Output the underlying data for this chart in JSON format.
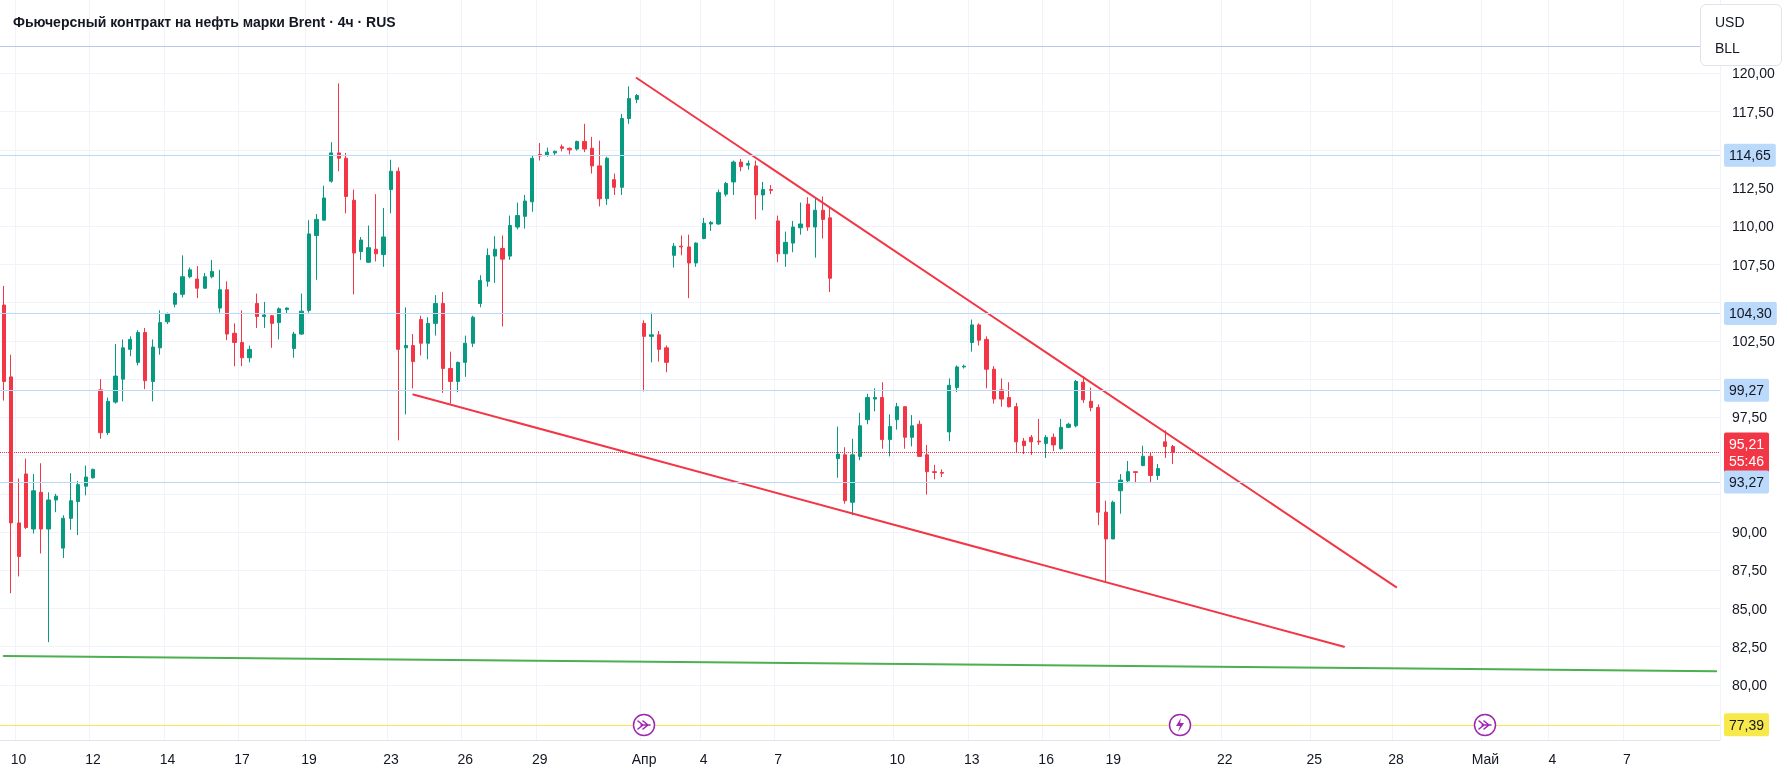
{
  "chart_data": {
    "type": "candlestick",
    "title": "Фьючерсный контракт на нефть марки Brent · 4ч · RUS",
    "annotations": [
      "USD",
      "BLL"
    ],
    "categories": [
      null,
      null,
      "10",
      null,
      null,
      null,
      null,
      null,
      null,
      null,
      null,
      null,
      "12",
      null,
      null,
      null,
      null,
      null,
      null,
      null,
      null,
      null,
      "14",
      null,
      null,
      null,
      null,
      null,
      null,
      null,
      null,
      null,
      "17",
      null,
      null,
      null,
      null,
      null,
      null,
      null,
      null,
      "19",
      null,
      null,
      null,
      null,
      null,
      null,
      null,
      null,
      null,
      null,
      "23",
      null,
      null,
      null,
      null,
      null,
      null,
      null,
      null,
      null,
      "26",
      null,
      null,
      null,
      null,
      null,
      null,
      null,
      null,
      null,
      "29",
      null,
      null,
      null,
      null,
      null,
      null,
      null,
      null,
      null,
      null,
      null,
      null,
      null,
      "Апр",
      null,
      null,
      null,
      null,
      null,
      null,
      null,
      "4",
      null,
      null,
      null,
      null,
      null,
      null,
      null,
      null,
      null,
      "7",
      null,
      null,
      null,
      null,
      null,
      null,
      null,
      null,
      null,
      null,
      null,
      null,
      null,
      null,
      null,
      "10",
      null,
      null,
      null,
      null,
      null,
      null,
      null,
      null,
      null,
      "13",
      null,
      null,
      null,
      null,
      null,
      null,
      null,
      null,
      null,
      "16",
      null,
      null,
      null,
      null,
      null,
      null,
      null,
      null,
      "19",
      null,
      null,
      null,
      null,
      null,
      null,
      null,
      null,
      null,
      null,
      null,
      null,
      null,
      null,
      "22",
      null,
      null,
      null,
      null,
      null,
      null,
      null,
      null,
      null,
      null,
      null,
      "25",
      null,
      null,
      null,
      null,
      null,
      null,
      null,
      null,
      null,
      null,
      "28",
      null,
      null,
      null,
      null,
      null,
      null,
      null,
      null,
      null,
      null,
      null,
      "Май",
      null,
      null,
      null,
      null,
      null,
      null,
      null,
      null,
      "4",
      null,
      null,
      null,
      null,
      null,
      null,
      null,
      null,
      null,
      "7",
      null,
      null,
      null,
      null,
      null,
      null,
      null,
      null,
      null,
      null,
      null,
      null
    ],
    "series": [
      {
        "ohlc": [
          [
            104.85,
            106.1,
            98.6,
            99.85
          ],
          [
            100.15,
            101.6,
            86.0,
            90.6
          ],
          [
            90.6,
            93.5,
            87.1,
            88.4
          ],
          [
            93.8,
            94.8,
            90.2,
            90.3
          ],
          [
            90.2,
            93.8,
            89.9,
            92.7
          ],
          [
            92.6,
            94.5,
            88.6,
            90.2
          ],
          [
            90.2,
            92.6,
            82.8,
            92.1
          ],
          [
            92.1,
            92.5,
            91.3,
            92.35
          ],
          [
            88.95,
            91.1,
            88.3,
            90.9
          ],
          [
            90.9,
            93.85,
            90.15,
            92.05
          ],
          [
            92.0,
            93.35,
            89.8,
            93.1
          ],
          [
            93.0,
            94.35,
            92.4,
            93.6
          ],
          [
            93.55,
            94.15,
            93.5,
            94.1
          ],
          [
            99.3,
            100.0,
            96.1,
            96.5
          ],
          [
            96.5,
            98.8,
            96.35,
            98.55
          ],
          [
            98.5,
            102.3,
            98.4,
            100.2
          ],
          [
            100.0,
            102.6,
            98.55,
            102.05
          ],
          [
            101.95,
            102.8,
            101.5,
            102.6
          ],
          [
            101.1,
            103.2,
            100.9,
            103.05
          ],
          [
            103.05,
            103.35,
            99.35,
            99.9
          ],
          [
            99.85,
            102.6,
            98.55,
            102.1
          ],
          [
            102.05,
            104.5,
            101.6,
            103.7
          ],
          [
            103.75,
            104.35,
            103.6,
            104.3
          ],
          [
            104.9,
            105.7,
            104.7,
            105.6
          ],
          [
            105.55,
            108.1,
            105.35,
            106.7
          ],
          [
            106.7,
            107.3,
            106.6,
            107.15
          ],
          [
            106.55,
            107.4,
            105.3,
            105.95
          ],
          [
            105.95,
            106.95,
            105.9,
            106.7
          ],
          [
            106.7,
            107.8,
            106.6,
            107.05
          ],
          [
            104.65,
            107.15,
            104.35,
            105.85
          ],
          [
            105.85,
            106.4,
            102.55,
            102.95
          ],
          [
            103.0,
            103.65,
            100.85,
            102.4
          ],
          [
            102.4,
            104.5,
            100.85,
            101.4
          ],
          [
            101.4,
            102.2,
            101.1,
            101.95
          ],
          [
            104.95,
            105.6,
            103.35,
            104.1
          ],
          [
            104.1,
            105.05,
            103.35,
            104.2
          ],
          [
            104.15,
            104.2,
            102.05,
            103.65
          ],
          [
            103.7,
            104.7,
            102.6,
            104.6
          ],
          [
            104.55,
            104.7,
            104.3,
            104.65
          ],
          [
            102.0,
            103.1,
            101.4,
            102.95
          ],
          [
            102.95,
            105.6,
            102.9,
            104.45
          ],
          [
            104.5,
            110.4,
            104.35,
            109.5
          ],
          [
            109.4,
            110.8,
            106.5,
            110.45
          ],
          [
            110.4,
            112.65,
            110.4,
            111.85
          ],
          [
            112.95,
            115.5,
            112.85,
            114.8
          ],
          [
            114.8,
            119.35,
            113.6,
            114.45
          ],
          [
            114.45,
            114.8,
            110.85,
            111.95
          ],
          [
            111.7,
            112.4,
            105.55,
            108.25
          ],
          [
            108.35,
            109.3,
            107.8,
            109.1
          ],
          [
            107.65,
            110.05,
            107.6,
            108.6
          ],
          [
            108.5,
            112.1,
            107.7,
            108.2
          ],
          [
            108.15,
            111.2,
            107.35,
            109.3
          ],
          [
            112.4,
            114.35,
            110.85,
            113.6
          ],
          [
            113.6,
            113.85,
            96.0,
            101.95
          ],
          [
            102.05,
            104.7,
            97.7,
            102.2
          ],
          [
            102.2,
            102.95,
            99.4,
            101.15
          ],
          [
            103.9,
            104.15,
            101.55,
            102.35
          ],
          [
            102.35,
            104.05,
            101.3,
            103.65
          ],
          [
            103.65,
            105.5,
            102.85,
            104.95
          ],
          [
            104.95,
            105.7,
            99.1,
            100.7
          ],
          [
            100.7,
            101.8,
            98.4,
            99.85
          ],
          [
            99.85,
            101.15,
            99.15,
            101.1
          ],
          [
            101.1,
            102.85,
            100.15,
            102.35
          ],
          [
            102.35,
            104.15,
            102.1,
            104.05
          ],
          [
            104.95,
            106.8,
            104.7,
            106.45
          ],
          [
            106.4,
            108.55,
            106.05,
            108.1
          ],
          [
            108.05,
            109.35,
            106.3,
            108.5
          ],
          [
            108.55,
            109.4,
            103.45,
            107.85
          ],
          [
            108.05,
            110.7,
            107.8,
            110.05
          ],
          [
            109.95,
            111.55,
            109.8,
            110.7
          ],
          [
            110.65,
            112.05,
            109.85,
            111.65
          ],
          [
            111.6,
            114.65,
            110.95,
            114.45
          ],
          [
            114.7,
            115.45,
            114.3,
            114.6
          ],
          [
            114.65,
            115.15,
            114.55,
            114.85
          ],
          [
            114.8,
            114.95,
            114.6,
            114.9
          ],
          [
            115.2,
            115.35,
            114.9,
            115.1
          ],
          [
            115.1,
            115.15,
            114.7,
            115.0
          ],
          [
            115.05,
            115.6,
            114.95,
            115.55
          ],
          [
            115.55,
            116.7,
            114.85,
            115.05
          ],
          [
            115.1,
            115.85,
            113.45,
            113.95
          ],
          [
            113.95,
            115.6,
            111.3,
            111.8
          ],
          [
            111.8,
            114.55,
            111.4,
            114.45
          ],
          [
            113.05,
            113.45,
            112.05,
            112.55
          ],
          [
            112.55,
            117.35,
            112.05,
            117.05
          ],
          [
            117.05,
            119.15,
            116.7,
            118.35
          ],
          [
            118.3,
            118.65,
            118.05,
            118.55
          ],
          [
            103.65,
            103.85,
            99.2,
            102.8
          ],
          [
            102.8,
            104.35,
            101.1,
            102.9
          ],
          [
            102.9,
            103.15,
            101.15,
            101.95
          ],
          [
            102.05,
            102.2,
            100.45,
            101.1
          ],
          [
            108.1,
            108.9,
            107.3,
            108.7
          ],
          [
            108.7,
            109.4,
            108.1,
            108.65
          ],
          [
            108.65,
            109.45,
            105.3,
            107.6
          ],
          [
            107.6,
            108.95,
            107.35,
            108.9
          ],
          [
            109.2,
            110.55,
            109.15,
            110.2
          ],
          [
            110.15,
            110.35,
            109.7,
            110.25
          ],
          [
            110.15,
            112.4,
            110.1,
            112.2
          ],
          [
            112.1,
            112.9,
            111.95,
            112.8
          ],
          [
            112.9,
            114.3,
            112.05,
            114.2
          ],
          [
            114.2,
            114.4,
            113.6,
            113.9
          ],
          [
            114.0,
            114.3,
            113.7,
            114.1
          ],
          [
            113.95,
            114.3,
            110.45,
            112.05
          ],
          [
            112.05,
            112.9,
            111.05,
            112.4
          ],
          [
            112.4,
            112.7,
            112.1,
            112.35
          ],
          [
            110.35,
            110.7,
            107.65,
            108.2
          ],
          [
            108.2,
            109.65,
            107.35,
            108.95
          ],
          [
            108.9,
            110.35,
            108.3,
            109.95
          ],
          [
            109.9,
            111.55,
            109.45,
            110.15
          ],
          [
            111.45,
            111.9,
            109.7,
            109.95
          ],
          [
            109.95,
            111.9,
            107.95,
            111.05
          ],
          [
            111.05,
            111.95,
            109.2,
            110.45
          ],
          [
            110.55,
            111.3,
            105.7,
            106.6
          ],
          [
            94.8,
            96.9,
            93.55,
            95.1
          ],
          [
            95.05,
            95.55,
            91.85,
            92.05
          ],
          [
            91.95,
            96.1,
            91.1,
            95.05
          ],
          [
            94.95,
            97.8,
            94.7,
            96.95
          ],
          [
            97.35,
            99.05,
            97.05,
            98.8
          ],
          [
            98.7,
            99.4,
            97.9,
            98.8
          ],
          [
            98.8,
            99.8,
            95.45,
            96.05
          ],
          [
            96.05,
            97.7,
            94.95,
            96.9
          ],
          [
            97.35,
            98.45,
            96.7,
            98.2
          ],
          [
            98.2,
            98.2,
            95.45,
            96.2
          ],
          [
            96.2,
            97.65,
            95.6,
            96.95
          ],
          [
            97.05,
            97.3,
            94.95,
            94.95
          ],
          [
            95.05,
            95.7,
            92.45,
            93.95
          ],
          [
            93.95,
            94.4,
            93.45,
            93.9
          ],
          [
            93.9,
            94.1,
            93.6,
            93.85
          ],
          [
            96.55,
            100.05,
            95.95,
            99.6
          ],
          [
            99.45,
            100.9,
            99.15,
            100.8
          ],
          [
            100.8,
            100.95,
            100.7,
            100.85
          ],
          [
            102.4,
            103.9,
            101.8,
            103.55
          ],
          [
            103.55,
            103.65,
            102.2,
            102.55
          ],
          [
            102.6,
            102.8,
            99.4,
            100.65
          ],
          [
            100.65,
            100.85,
            98.4,
            98.7
          ],
          [
            99.3,
            100.05,
            98.2,
            98.7
          ],
          [
            98.8,
            99.8,
            98.15,
            98.2
          ],
          [
            98.2,
            98.45,
            95.2,
            95.9
          ],
          [
            95.95,
            96.15,
            95.1,
            95.65
          ],
          [
            96.2,
            96.35,
            95.05,
            95.9
          ],
          [
            95.95,
            97.4,
            95.7,
            95.9
          ],
          [
            95.8,
            96.35,
            94.85,
            96.2
          ],
          [
            96.2,
            96.45,
            95.3,
            95.7
          ],
          [
            95.45,
            97.4,
            95.4,
            96.85
          ],
          [
            96.85,
            97.15,
            96.8,
            97.05
          ],
          [
            96.95,
            99.95,
            96.85,
            99.85
          ],
          [
            99.8,
            100.2,
            98.45,
            98.65
          ],
          [
            98.55,
            99.45,
            97.9,
            98.15
          ],
          [
            98.15,
            98.35,
            90.45,
            91.3
          ],
          [
            91.3,
            92.05,
            86.8,
            89.55
          ],
          [
            89.55,
            92.05,
            89.55,
            91.95
          ],
          [
            92.7,
            93.8,
            91.2,
            93.4
          ],
          [
            93.35,
            94.65,
            93.2,
            93.95
          ],
          [
            93.95,
            93.95,
            93.2,
            93.9
          ],
          [
            94.35,
            95.65,
            94.3,
            94.95
          ],
          [
            94.95,
            95.2,
            93.2,
            93.7
          ],
          [
            93.7,
            94.45,
            93.4,
            94.15
          ],
          [
            95.9,
            96.65,
            94.85,
            95.6
          ],
          [
            95.6,
            95.7,
            94.45,
            95.21
          ],
          null,
          null,
          null,
          null,
          null,
          null,
          null,
          null,
          null,
          null,
          null,
          null,
          null,
          null,
          null,
          null,
          null,
          null,
          null,
          null,
          null,
          null,
          null,
          null,
          null,
          null,
          null,
          null,
          null,
          null,
          null,
          null,
          null,
          null,
          null,
          null,
          null,
          null,
          null,
          null,
          null,
          null,
          null,
          null,
          null,
          null,
          null,
          null,
          null,
          null,
          null,
          null,
          null,
          null,
          null,
          null,
          null,
          null,
          null,
          null,
          null,
          null,
          null,
          null,
          null,
          null,
          null,
          null,
          null,
          null,
          null,
          null,
          null
        ]
      },
      {
        "type": "line",
        "color": "#f23645",
        "values": [
          null,
          null,
          null,
          null,
          null,
          null,
          null,
          null,
          null,
          null,
          null,
          null,
          null,
          null,
          null,
          null,
          null,
          null,
          null,
          null,
          null,
          null,
          null,
          null,
          null,
          null,
          null,
          null,
          null,
          null,
          null,
          null,
          null,
          null,
          null,
          null,
          null,
          null,
          null,
          null,
          null,
          null,
          null,
          null,
          null,
          null,
          null,
          null,
          null,
          null,
          null,
          null,
          null,
          null,
          null,
          null,
          null,
          null,
          null,
          null,
          null,
          null,
          null,
          null,
          null,
          null,
          null,
          null,
          null,
          null,
          null,
          null,
          null,
          null,
          null,
          null,
          null,
          null,
          null,
          null,
          null,
          null,
          null,
          null,
          null,
          119.7,
          null,
          null,
          null,
          null,
          null,
          null,
          null,
          null,
          null,
          null,
          null,
          null,
          null,
          null,
          null,
          null,
          null,
          null,
          null,
          null,
          null,
          null,
          null,
          null,
          null,
          null,
          null,
          null,
          null,
          null,
          null,
          null,
          null,
          null,
          null,
          null,
          null,
          null,
          null,
          null,
          null,
          null,
          null,
          null,
          null,
          null,
          null,
          null,
          null,
          null,
          null,
          null,
          null,
          null,
          null,
          null,
          null,
          null,
          null,
          null,
          null,
          null,
          null,
          null,
          null,
          null,
          null,
          null,
          null,
          null,
          null,
          null,
          null,
          null,
          null,
          null,
          null,
          null,
          null,
          null,
          null,
          null,
          null,
          null,
          null,
          null,
          null,
          null,
          null,
          null,
          null,
          null,
          null,
          null,
          null,
          null,
          null,
          null,
          null,
          null,
          null,
          86.4,
          null,
          null,
          null,
          null,
          null,
          null,
          null,
          null,
          null,
          null,
          null,
          null,
          null,
          null,
          null,
          null,
          null,
          null,
          null,
          null,
          null,
          null,
          null,
          null,
          null,
          null,
          null,
          null,
          null,
          null,
          null,
          null,
          null,
          null,
          null,
          null,
          null,
          null,
          null,
          null,
          null,
          null,
          null
        ]
      },
      {
        "type": "line",
        "color": "#f23645",
        "values": [
          null,
          null,
          null,
          null,
          null,
          null,
          null,
          null,
          null,
          null,
          null,
          null,
          null,
          null,
          null,
          null,
          null,
          null,
          null,
          null,
          null,
          null,
          null,
          null,
          null,
          null,
          null,
          null,
          null,
          null,
          null,
          null,
          null,
          null,
          null,
          null,
          null,
          null,
          null,
          null,
          null,
          null,
          null,
          null,
          null,
          null,
          null,
          null,
          null,
          null,
          null,
          null,
          null,
          null,
          null,
          99.0,
          null,
          null,
          null,
          null,
          null,
          null,
          null,
          null,
          null,
          null,
          null,
          null,
          null,
          null,
          null,
          null,
          null,
          null,
          null,
          null,
          null,
          null,
          null,
          null,
          null,
          null,
          null,
          null,
          null,
          null,
          null,
          null,
          null,
          null,
          null,
          null,
          null,
          null,
          null,
          null,
          null,
          null,
          null,
          null,
          null,
          null,
          null,
          null,
          null,
          null,
          null,
          null,
          null,
          null,
          null,
          null,
          null,
          null,
          null,
          null,
          null,
          null,
          null,
          null,
          null,
          null,
          null,
          null,
          null,
          null,
          null,
          null,
          null,
          null,
          null,
          null,
          null,
          null,
          null,
          null,
          null,
          null,
          null,
          null,
          null,
          null,
          null,
          null,
          null,
          null,
          null,
          null,
          null,
          null,
          null,
          null,
          null,
          null,
          null,
          null,
          null,
          null,
          null,
          null,
          null,
          null,
          null,
          null,
          null,
          null,
          null,
          null,
          null,
          null,
          null,
          null,
          null,
          null,
          null,
          null,
          null,
          null,
          null,
          null,
          82.5,
          null,
          null,
          null,
          null,
          null,
          null,
          null,
          null,
          null,
          null,
          null,
          null,
          null,
          null,
          null,
          null,
          null,
          null,
          null,
          null,
          null,
          null,
          null,
          null,
          null,
          null,
          null,
          null,
          null,
          null,
          null,
          null,
          null,
          null,
          null,
          null,
          null,
          null,
          null,
          null,
          null,
          null,
          null,
          null,
          null,
          null,
          null,
          null,
          null,
          null
        ]
      },
      {
        "type": "line",
        "color": "#4caf50",
        "values": [
          81.9,
          null,
          null,
          null,
          null,
          null,
          null,
          null,
          null,
          null,
          null,
          null,
          null,
          null,
          null,
          null,
          null,
          null,
          null,
          null,
          null,
          null,
          null,
          null,
          null,
          null,
          null,
          null,
          null,
          null,
          null,
          null,
          null,
          null,
          null,
          null,
          null,
          null,
          null,
          null,
          null,
          null,
          null,
          null,
          null,
          null,
          null,
          null,
          null,
          null,
          null,
          null,
          null,
          null,
          null,
          null,
          null,
          null,
          null,
          null,
          null,
          null,
          null,
          null,
          null,
          null,
          null,
          null,
          null,
          null,
          null,
          null,
          null,
          null,
          null,
          null,
          null,
          null,
          null,
          null,
          null,
          null,
          null,
          null,
          null,
          null,
          null,
          null,
          null,
          null,
          null,
          null,
          null,
          null,
          null,
          null,
          null,
          null,
          null,
          null,
          null,
          null,
          null,
          null,
          null,
          null,
          null,
          null,
          null,
          null,
          null,
          null,
          null,
          null,
          null,
          null,
          null,
          null,
          null,
          null,
          null,
          null,
          null,
          null,
          null,
          null,
          null,
          null,
          null,
          null,
          null,
          null,
          null,
          null,
          null,
          null,
          null,
          null,
          null,
          null,
          null,
          null,
          null,
          null,
          null,
          null,
          null,
          null,
          null,
          null,
          null,
          null,
          null,
          null,
          null,
          null,
          null,
          null,
          null,
          null,
          null,
          null,
          null,
          null,
          null,
          null,
          null,
          null,
          null,
          null,
          null,
          null,
          null,
          null,
          null,
          null,
          null,
          null,
          null,
          null,
          null,
          null,
          null,
          null,
          null,
          null,
          null,
          null,
          null,
          null,
          null,
          null,
          null,
          null,
          null,
          null,
          null,
          null,
          null,
          null,
          null,
          null,
          null,
          null,
          null,
          null,
          null,
          null,
          null,
          null,
          null,
          null,
          null,
          null,
          null,
          null,
          null,
          null,
          null,
          null,
          null,
          null,
          null,
          null,
          null,
          null,
          null,
          null,
          null,
          null,
          80.9
        ]
      }
    ],
    "ref_lines": [
      {
        "axis": "y",
        "value": 121.8,
        "color": "#b2cbe8"
      },
      {
        "axis": "y",
        "value": 114.65,
        "label": "114,65",
        "color": "#bbd9fb"
      },
      {
        "axis": "y",
        "value": 104.3,
        "label": "104,30",
        "color": "#bbd9fb"
      },
      {
        "axis": "y",
        "value": 99.27,
        "label": "99,27",
        "color": "#bbd9fb"
      },
      {
        "axis": "y",
        "value": 95.21,
        "label": "95,21\n55:46",
        "color": "#f23645",
        "line_style": "dotted"
      },
      {
        "axis": "y",
        "value": 93.27,
        "label": "93,27",
        "color": "#bbd9fb"
      },
      {
        "axis": "y",
        "value": 77.39,
        "label": "77,39",
        "color": "#f7e94c"
      }
    ],
    "ylim": [
      76.4,
      124.8
    ],
    "yticks": [
      {
        "value": 80,
        "label": "80,00"
      },
      {
        "value": 82.5,
        "label": "82,50"
      },
      {
        "value": 85,
        "label": "85,00"
      },
      {
        "value": 87.5,
        "label": "87,50"
      },
      {
        "value": 90,
        "label": "90,00"
      },
      {
        "value": 92.5,
        "label": null
      },
      {
        "value": 95,
        "label": null
      },
      {
        "value": 97.5,
        "label": "97,50"
      },
      {
        "value": 100,
        "label": null
      },
      {
        "value": 102.5,
        "label": "102,50"
      },
      {
        "value": 105,
        "label": null
      },
      {
        "value": 107.5,
        "label": "107,50"
      },
      {
        "value": 110,
        "label": "110,00"
      },
      {
        "value": 112.5,
        "label": "112,50"
      },
      {
        "value": 115,
        "label": null
      },
      {
        "value": 117.5,
        "label": "117,50"
      },
      {
        "value": 120,
        "label": "120,00"
      }
    ],
    "grid": true
  }
}
